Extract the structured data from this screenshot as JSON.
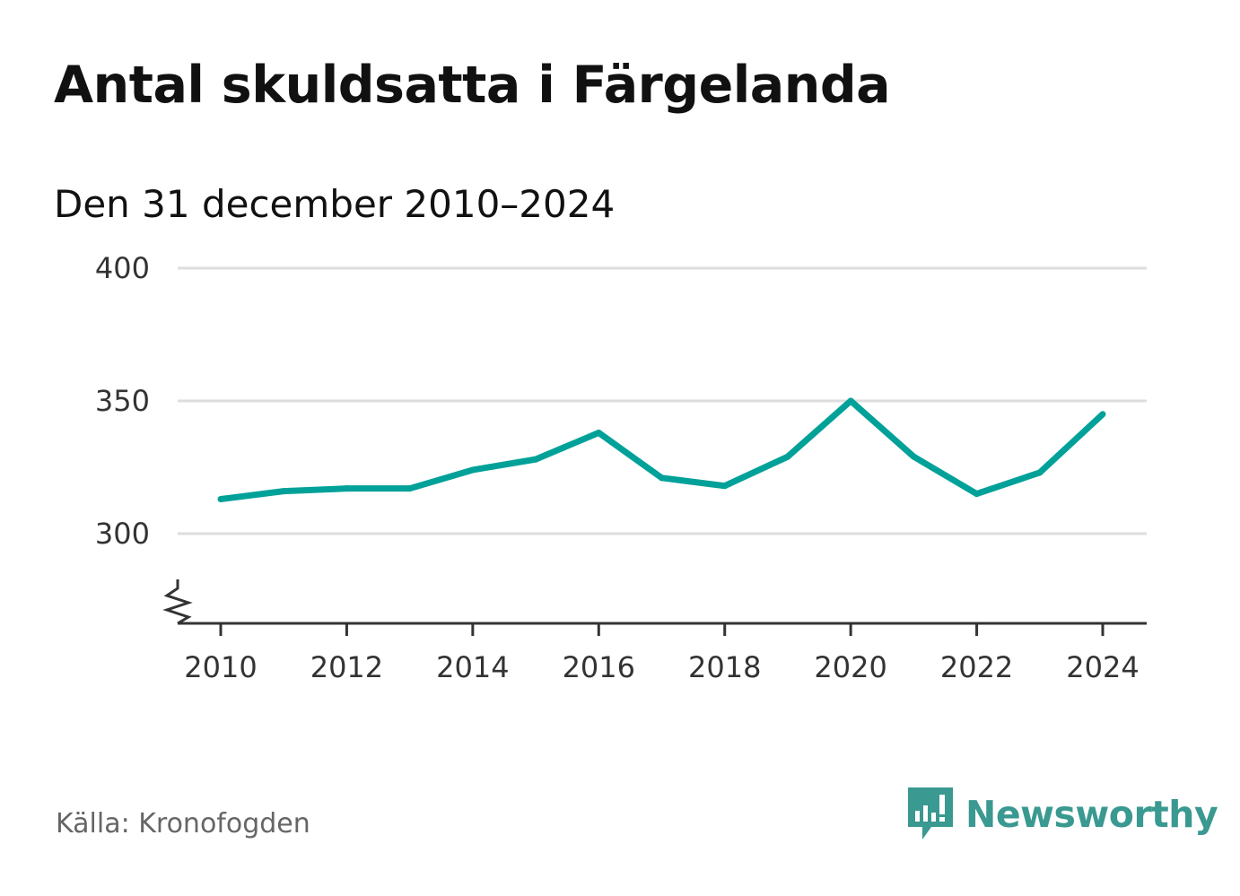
{
  "title": "Antal skuldsatta i Färgelanda",
  "subtitle": "Den 31 december 2010–2024",
  "source": "Källa: Kronofogden",
  "brand": {
    "name": "Newsworthy",
    "color": "#3a9990"
  },
  "colors": {
    "line": "#00a199",
    "grid": "#dddddd",
    "axis": "#333333"
  },
  "chart_data": {
    "type": "line",
    "title": "Antal skuldsatta i Färgelanda",
    "subtitle": "Den 31 december 2010–2024",
    "xlabel": "",
    "ylabel": "",
    "x": [
      2010,
      2011,
      2012,
      2013,
      2014,
      2015,
      2016,
      2017,
      2018,
      2019,
      2020,
      2021,
      2022,
      2023,
      2024
    ],
    "values": [
      313,
      316,
      317,
      317,
      324,
      328,
      338,
      321,
      318,
      329,
      350,
      329,
      315,
      323,
      345
    ],
    "ylim": [
      266,
      400
    ],
    "yticks": [
      300,
      350,
      400
    ],
    "xticks": [
      2010,
      2012,
      2014,
      2016,
      2018,
      2020,
      2022,
      2024
    ],
    "axis_break": true,
    "grid": true
  }
}
